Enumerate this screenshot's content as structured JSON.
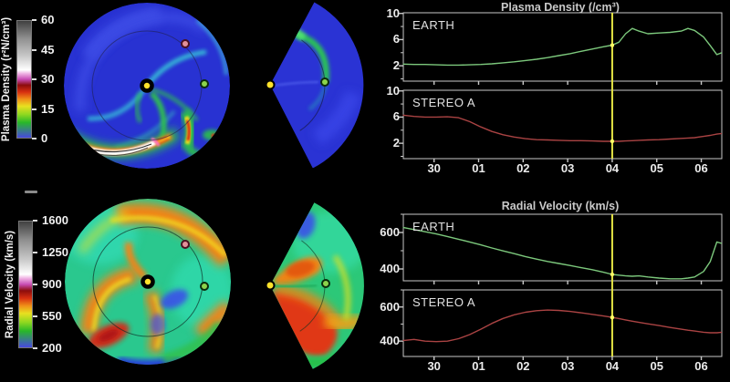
{
  "page": {
    "background": "#000000"
  },
  "stray_dash": {
    "color": "#8a8a8a"
  },
  "colorbars": {
    "density": {
      "label": "Plasma Density (r²N/cm³)",
      "ticks": [
        "60",
        "45",
        "30",
        "15",
        "0"
      ],
      "gradient": [
        [
          0,
          "#4848e0"
        ],
        [
          0.13,
          "#28b828"
        ],
        [
          0.2,
          "#90d820"
        ],
        [
          0.27,
          "#e8e020"
        ],
        [
          0.33,
          "#f09018"
        ],
        [
          0.39,
          "#d83010"
        ],
        [
          0.45,
          "#8c0c0c"
        ],
        [
          0.5,
          "#c84cb4"
        ],
        [
          0.55,
          "#f0b4e4"
        ],
        [
          0.58,
          "#ffffff"
        ],
        [
          0.7,
          "#c8c8c8"
        ],
        [
          0.85,
          "#909090"
        ],
        [
          1,
          "#404040"
        ]
      ]
    },
    "velocity": {
      "label": "Radial Velocity (km/s)",
      "ticks": [
        "1600",
        "1250",
        "900",
        "550",
        "200"
      ],
      "gradient": [
        [
          0,
          "#4848e0"
        ],
        [
          0.13,
          "#28b828"
        ],
        [
          0.2,
          "#90d820"
        ],
        [
          0.27,
          "#e8e020"
        ],
        [
          0.33,
          "#f09018"
        ],
        [
          0.39,
          "#d83010"
        ],
        [
          0.45,
          "#8c0c0c"
        ],
        [
          0.5,
          "#c84cb4"
        ],
        [
          0.55,
          "#f0b4e4"
        ],
        [
          0.58,
          "#ffffff"
        ],
        [
          0.7,
          "#c8c8c8"
        ],
        [
          0.85,
          "#909090"
        ],
        [
          1,
          "#404040"
        ]
      ]
    }
  },
  "map_markers": {
    "sun_color": "#ffe12b",
    "earth_color": "#8cd44c",
    "stereo_a_color": "#e2909a"
  },
  "chart_data": [
    {
      "type": "line",
      "title": "Plasma Density (/cm³)",
      "xlim": [
        -0.69,
        6.46
      ],
      "x_ticks": [
        0,
        1,
        2,
        3,
        4,
        5,
        6
      ],
      "x_ticklabels": [
        "30",
        "01",
        "02",
        "03",
        "04",
        "05",
        "06"
      ],
      "now_x": 4,
      "now_color": "#e6e645",
      "now_dot_color": "#ffff66",
      "frame_color": "#c8c8c8",
      "panels": [
        {
          "label": "EARTH",
          "color": "#7cc87c",
          "ylim": [
            -0.35,
            10.1
          ],
          "yticks": [
            2,
            6,
            10
          ],
          "yminor": [
            0,
            4,
            8
          ],
          "x": [
            -0.7,
            -0.45,
            -0.2,
            0.05,
            0.3,
            0.55,
            0.8,
            1.05,
            1.3,
            1.55,
            1.8,
            2.05,
            2.3,
            2.55,
            2.8,
            3.05,
            3.3,
            3.55,
            3.8,
            4,
            4.15,
            4.3,
            4.45,
            4.6,
            4.8,
            5.05,
            5.3,
            5.55,
            5.7,
            5.85,
            6.05,
            6.2,
            6.35,
            6.46
          ],
          "values": [
            2.25,
            2.2,
            2.2,
            2.15,
            2.1,
            2.1,
            2.15,
            2.2,
            2.3,
            2.45,
            2.6,
            2.8,
            3.0,
            3.25,
            3.55,
            3.85,
            4.2,
            4.55,
            4.9,
            5.15,
            5.6,
            6.9,
            7.7,
            7.3,
            6.9,
            7.0,
            7.1,
            7.3,
            7.7,
            7.4,
            6.4,
            5.1,
            3.7,
            4.0
          ]
        },
        {
          "label": "STEREO A",
          "color": "#aa4343",
          "ylim": [
            -0.35,
            10.1
          ],
          "yticks": [
            2,
            6,
            10
          ],
          "yminor": [
            0,
            4,
            8
          ],
          "x": [
            -0.7,
            -0.45,
            -0.2,
            0.05,
            0.3,
            0.55,
            0.8,
            1.05,
            1.3,
            1.55,
            1.8,
            2.05,
            2.3,
            2.55,
            2.8,
            3.05,
            3.3,
            3.55,
            3.8,
            4,
            4.15,
            4.3,
            4.45,
            4.6,
            4.8,
            5.05,
            5.3,
            5.55,
            5.7,
            5.85,
            6.05,
            6.2,
            6.35,
            6.46
          ],
          "values": [
            6.3,
            6.1,
            6.0,
            6.0,
            6.05,
            5.9,
            5.3,
            4.5,
            3.8,
            3.3,
            2.95,
            2.7,
            2.55,
            2.5,
            2.45,
            2.4,
            2.4,
            2.35,
            2.3,
            2.3,
            2.3,
            2.35,
            2.4,
            2.45,
            2.5,
            2.55,
            2.65,
            2.75,
            2.8,
            2.85,
            3.05,
            3.2,
            3.4,
            3.5
          ]
        }
      ]
    },
    {
      "type": "line",
      "title": "Radial Velocity (km/s)",
      "xlim": [
        -0.69,
        6.46
      ],
      "x_ticks": [
        0,
        1,
        2,
        3,
        4,
        5,
        6
      ],
      "x_ticklabels": [
        "30",
        "01",
        "02",
        "03",
        "04",
        "05",
        "06"
      ],
      "now_x": 4,
      "now_color": "#e6e645",
      "now_dot_color": "#ffff66",
      "frame_color": "#c8c8c8",
      "panels": [
        {
          "label": "EARTH",
          "color": "#7cc87c",
          "ylim": [
            335,
            700
          ],
          "yticks": [
            400,
            600
          ],
          "yminor": [
            500,
            700
          ],
          "x": [
            -0.7,
            -0.45,
            -0.2,
            0.05,
            0.3,
            0.55,
            0.8,
            1.05,
            1.3,
            1.55,
            1.8,
            2.05,
            2.3,
            2.55,
            2.8,
            3.05,
            3.3,
            3.55,
            3.8,
            4,
            4.15,
            4.3,
            4.45,
            4.6,
            4.8,
            5.05,
            5.3,
            5.55,
            5.7,
            5.85,
            6.05,
            6.2,
            6.35,
            6.46
          ],
          "values": [
            628,
            616,
            604,
            592,
            578,
            563,
            548,
            532,
            515,
            499,
            484,
            468,
            454,
            441,
            430,
            419,
            407,
            396,
            382,
            370,
            366,
            362,
            360,
            362,
            356,
            350,
            346,
            346,
            350,
            356,
            386,
            440,
            548,
            540
          ]
        },
        {
          "label": "STEREO A",
          "color": "#aa4343",
          "ylim": [
            310,
            700
          ],
          "yticks": [
            400,
            600
          ],
          "yminor": [
            500,
            700
          ],
          "x": [
            -0.7,
            -0.45,
            -0.2,
            0.05,
            0.3,
            0.55,
            0.8,
            1.05,
            1.3,
            1.55,
            1.8,
            2.05,
            2.3,
            2.55,
            2.8,
            3.05,
            3.3,
            3.55,
            3.8,
            4,
            4.15,
            4.3,
            4.45,
            4.6,
            4.8,
            5.05,
            5.3,
            5.55,
            5.7,
            5.85,
            6.05,
            6.2,
            6.35,
            6.46
          ],
          "values": [
            403,
            410,
            400,
            397,
            400,
            414,
            438,
            470,
            504,
            533,
            554,
            569,
            578,
            582,
            580,
            574,
            566,
            557,
            547,
            539,
            532,
            524,
            517,
            510,
            501,
            491,
            480,
            470,
            464,
            459,
            452,
            449,
            449,
            452
          ]
        }
      ]
    }
  ]
}
